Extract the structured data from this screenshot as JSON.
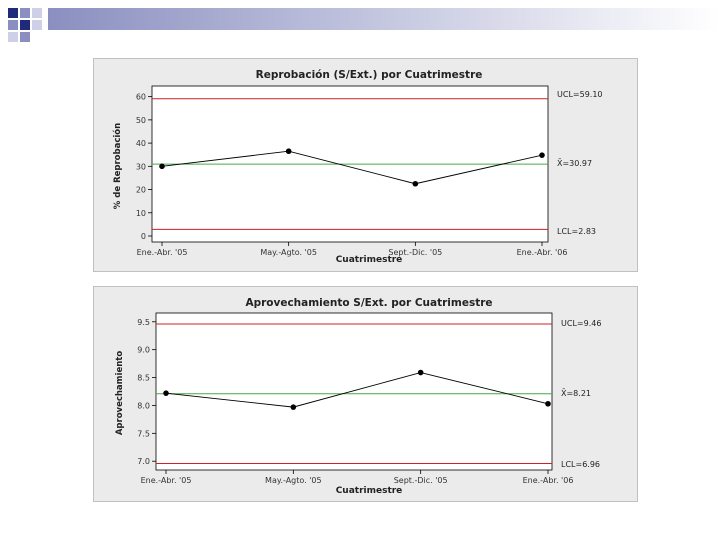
{
  "chart_data": [
    {
      "type": "line",
      "title": "Reprobación (S/Ext.) por Cuatrimestre",
      "xlabel": "Cuatrimestre",
      "ylabel": "% de Reprobación",
      "categories": [
        "Ene.-Abr. '05",
        "May.-Agto. '05",
        "Sept.-Dic. '05",
        "Ene.-Abr. '06"
      ],
      "values": [
        30.0,
        36.5,
        22.5,
        34.8
      ],
      "ylim": [
        0,
        62
      ],
      "yticks": [
        "0",
        "10",
        "20",
        "30",
        "40",
        "50",
        "60"
      ],
      "ucl": 59.1,
      "center": 30.97,
      "lcl": 2.83,
      "ucl_label": "UCL=59.10",
      "center_label": "X̄=30.97",
      "lcl_label": "LCL=2.83",
      "colors": {
        "limits": "#cc2222",
        "center": "#44aa44",
        "line": "#000000"
      }
    },
    {
      "type": "line",
      "title": "Aprovechamiento S/Ext. por Cuatrimestre",
      "xlabel": "Cuatrimestre",
      "ylabel": "Aprovechamiento",
      "categories": [
        "Ene.-Abr. '05",
        "May.-Agto. '05",
        "Sept.-Dic. '05",
        "Ene.-Abr. '06"
      ],
      "values": [
        8.22,
        7.97,
        8.59,
        8.03
      ],
      "ylim": [
        6.95,
        9.55
      ],
      "yticks": [
        "7.0",
        "7.5",
        "8.0",
        "8.5",
        "9.0",
        "9.5"
      ],
      "ucl": 9.46,
      "center": 8.21,
      "lcl": 6.96,
      "ucl_label": "UCL=9.46",
      "center_label": "X̄=8.21",
      "lcl_label": "LCL=6.96",
      "colors": {
        "limits": "#cc2222",
        "center": "#44aa44",
        "line": "#000000"
      }
    }
  ],
  "decoration": {
    "colors": {
      "dark": "#1f2a7a",
      "mid": "#8a8fc0",
      "light": "#cdd0e6"
    }
  }
}
